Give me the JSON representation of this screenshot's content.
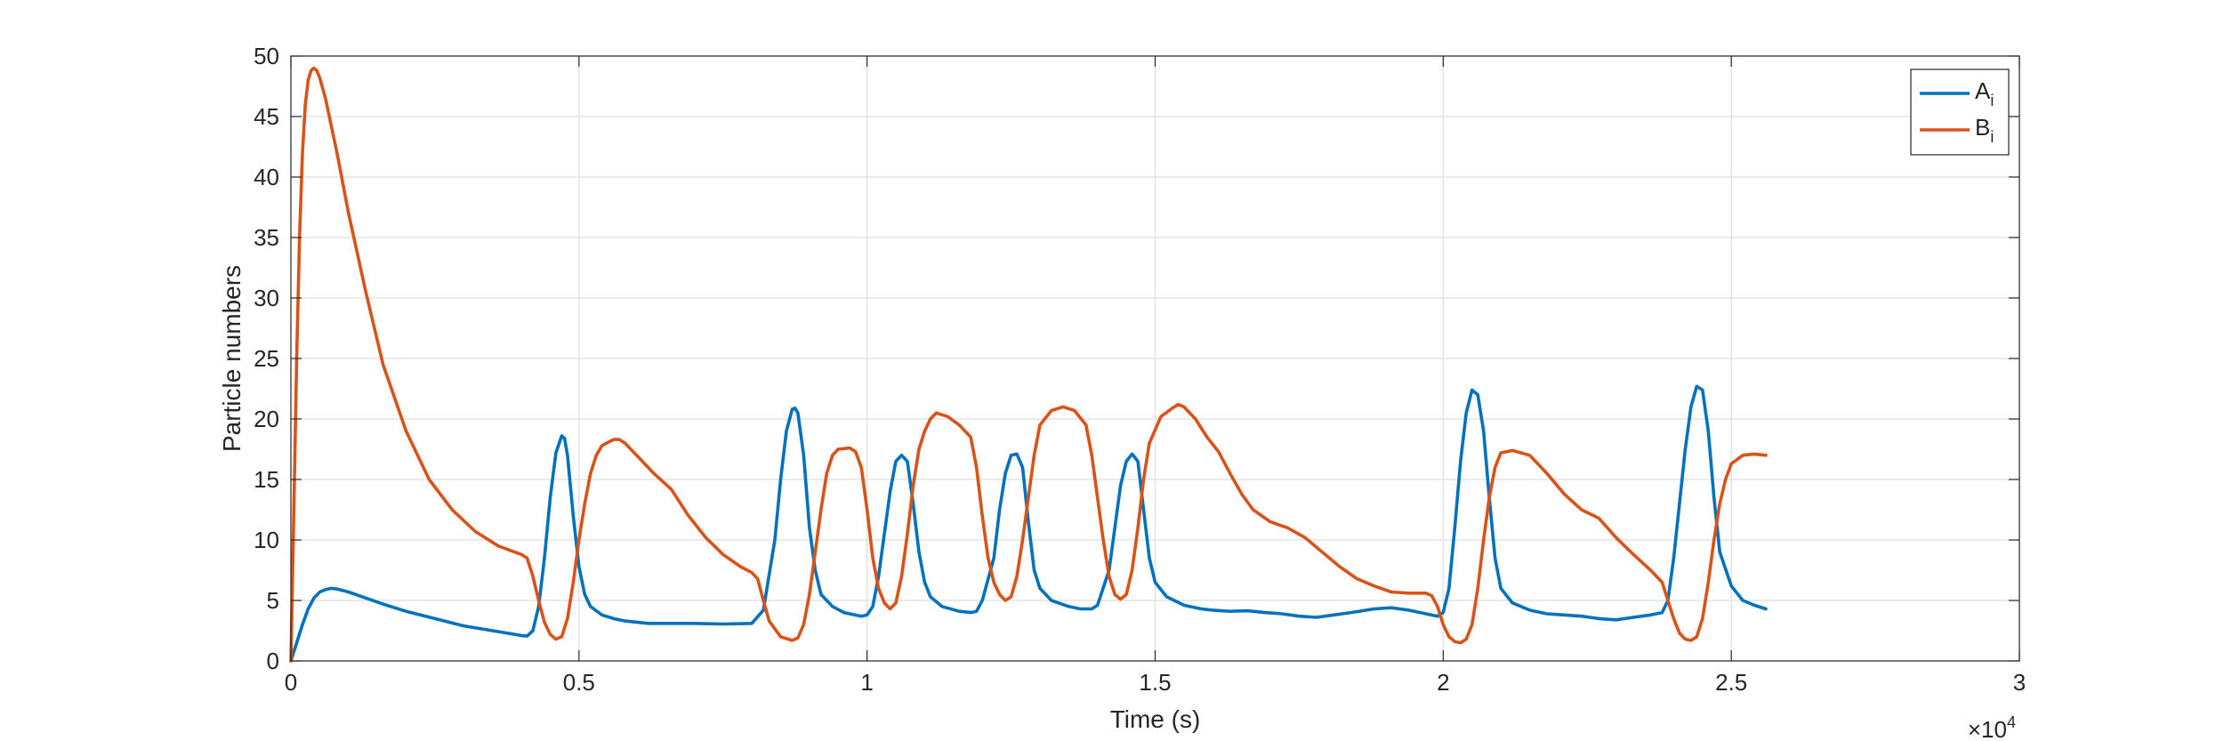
{
  "chart_data": {
    "type": "line",
    "xlabel": "Time (s)",
    "ylabel": "Particle numbers",
    "xlim": [
      0,
      30000
    ],
    "ylim": [
      0,
      50
    ],
    "x_ticks": [
      0,
      5000,
      10000,
      15000,
      20000,
      25000,
      30000
    ],
    "x_tick_labels": [
      "0",
      "0.5",
      "1",
      "1.5",
      "2",
      "2.5",
      "3"
    ],
    "x_multiplier": {
      "base": "×10",
      "exponent": "4"
    },
    "y_ticks": [
      0,
      5,
      10,
      15,
      20,
      25,
      30,
      35,
      40,
      45,
      50
    ],
    "y_tick_labels": [
      "0",
      "5",
      "10",
      "15",
      "20",
      "25",
      "30",
      "35",
      "40",
      "45",
      "50"
    ],
    "grid": true,
    "legend_position": "top-right",
    "series": [
      {
        "name": "A",
        "subscript": "i",
        "color": "#0072BD",
        "points": [
          [
            0,
            0
          ],
          [
            100,
            1.5
          ],
          [
            200,
            3
          ],
          [
            300,
            4.3
          ],
          [
            400,
            5.2
          ],
          [
            500,
            5.7
          ],
          [
            600,
            5.9
          ],
          [
            700,
            6
          ],
          [
            800,
            5.95
          ],
          [
            1000,
            5.7
          ],
          [
            1300,
            5.2
          ],
          [
            1600,
            4.7
          ],
          [
            2000,
            4.1
          ],
          [
            2500,
            3.5
          ],
          [
            3000,
            2.9
          ],
          [
            3500,
            2.5
          ],
          [
            4000,
            2.1
          ],
          [
            4100,
            2.05
          ],
          [
            4200,
            2.5
          ],
          [
            4300,
            4.5
          ],
          [
            4400,
            8.5
          ],
          [
            4500,
            13.5
          ],
          [
            4600,
            17.2
          ],
          [
            4700,
            18.6
          ],
          [
            4750,
            18.4
          ],
          [
            4800,
            17
          ],
          [
            4900,
            12
          ],
          [
            5000,
            7.8
          ],
          [
            5100,
            5.5
          ],
          [
            5200,
            4.5
          ],
          [
            5400,
            3.8
          ],
          [
            5600,
            3.5
          ],
          [
            5800,
            3.3
          ],
          [
            6200,
            3.1
          ],
          [
            6600,
            3.1
          ],
          [
            7000,
            3.1
          ],
          [
            7500,
            3.05
          ],
          [
            8000,
            3.1
          ],
          [
            8200,
            4.2
          ],
          [
            8400,
            10
          ],
          [
            8500,
            15
          ],
          [
            8600,
            19
          ],
          [
            8700,
            20.8
          ],
          [
            8750,
            20.9
          ],
          [
            8800,
            20.5
          ],
          [
            8900,
            17
          ],
          [
            9000,
            11
          ],
          [
            9100,
            7.5
          ],
          [
            9200,
            5.5
          ],
          [
            9400,
            4.5
          ],
          [
            9600,
            4
          ],
          [
            9900,
            3.7
          ],
          [
            10000,
            3.8
          ],
          [
            10100,
            4.5
          ],
          [
            10200,
            7
          ],
          [
            10300,
            10.5
          ],
          [
            10400,
            14
          ],
          [
            10500,
            16.5
          ],
          [
            10600,
            17
          ],
          [
            10700,
            16.5
          ],
          [
            10800,
            13
          ],
          [
            10900,
            9
          ],
          [
            11000,
            6.5
          ],
          [
            11100,
            5.3
          ],
          [
            11300,
            4.5
          ],
          [
            11600,
            4.1
          ],
          [
            11800,
            4
          ],
          [
            11900,
            4.1
          ],
          [
            12000,
            5
          ],
          [
            12200,
            8.5
          ],
          [
            12300,
            12.5
          ],
          [
            12400,
            15.5
          ],
          [
            12500,
            17
          ],
          [
            12600,
            17.1
          ],
          [
            12700,
            16
          ],
          [
            12800,
            11.5
          ],
          [
            12900,
            7.5
          ],
          [
            13000,
            6
          ],
          [
            13200,
            5
          ],
          [
            13500,
            4.5
          ],
          [
            13700,
            4.3
          ],
          [
            13900,
            4.3
          ],
          [
            14000,
            4.6
          ],
          [
            14200,
            7.5
          ],
          [
            14300,
            11
          ],
          [
            14400,
            14.5
          ],
          [
            14500,
            16.5
          ],
          [
            14600,
            17.1
          ],
          [
            14700,
            16.5
          ],
          [
            14800,
            12.5
          ],
          [
            14900,
            8.5
          ],
          [
            15000,
            6.5
          ],
          [
            15200,
            5.3
          ],
          [
            15500,
            4.6
          ],
          [
            15800,
            4.3
          ],
          [
            16000,
            4.2
          ],
          [
            16300,
            4.1
          ],
          [
            16600,
            4.15
          ],
          [
            16900,
            4
          ],
          [
            17200,
            3.9
          ],
          [
            17500,
            3.7
          ],
          [
            17800,
            3.6
          ],
          [
            18100,
            3.8
          ],
          [
            18400,
            4
          ],
          [
            18800,
            4.3
          ],
          [
            19100,
            4.4
          ],
          [
            19400,
            4.2
          ],
          [
            19700,
            3.9
          ],
          [
            19900,
            3.7
          ],
          [
            20000,
            4
          ],
          [
            20100,
            6
          ],
          [
            20200,
            11
          ],
          [
            20300,
            16.5
          ],
          [
            20400,
            20.5
          ],
          [
            20500,
            22.4
          ],
          [
            20600,
            22
          ],
          [
            20700,
            19
          ],
          [
            20800,
            13.5
          ],
          [
            20900,
            8.5
          ],
          [
            21000,
            6
          ],
          [
            21200,
            4.8
          ],
          [
            21500,
            4.2
          ],
          [
            21800,
            3.9
          ],
          [
            22100,
            3.8
          ],
          [
            22400,
            3.7
          ],
          [
            22700,
            3.5
          ],
          [
            23000,
            3.4
          ],
          [
            23300,
            3.6
          ],
          [
            23600,
            3.8
          ],
          [
            23800,
            4
          ],
          [
            23900,
            5
          ],
          [
            24000,
            8.5
          ],
          [
            24100,
            13
          ],
          [
            24200,
            17.5
          ],
          [
            24300,
            21
          ],
          [
            24400,
            22.7
          ],
          [
            24500,
            22.4
          ],
          [
            24600,
            19
          ],
          [
            24700,
            13.5
          ],
          [
            24800,
            9
          ],
          [
            25000,
            6.2
          ],
          [
            25200,
            5
          ],
          [
            25400,
            4.6
          ],
          [
            25600,
            4.3
          ]
        ]
      },
      {
        "name": "B",
        "subscript": "i",
        "color": "#D95319",
        "points": [
          [
            0,
            0
          ],
          [
            50,
            12
          ],
          [
            100,
            25
          ],
          [
            150,
            35
          ],
          [
            200,
            42
          ],
          [
            250,
            46
          ],
          [
            300,
            48
          ],
          [
            350,
            48.8
          ],
          [
            400,
            49
          ],
          [
            450,
            48.8
          ],
          [
            500,
            48.2
          ],
          [
            600,
            46.5
          ],
          [
            800,
            42
          ],
          [
            1000,
            37
          ],
          [
            1300,
            30.5
          ],
          [
            1600,
            24.5
          ],
          [
            2000,
            19
          ],
          [
            2400,
            15
          ],
          [
            2800,
            12.5
          ],
          [
            3200,
            10.7
          ],
          [
            3600,
            9.5
          ],
          [
            4000,
            8.8
          ],
          [
            4100,
            8.5
          ],
          [
            4200,
            7
          ],
          [
            4300,
            5
          ],
          [
            4400,
            3.2
          ],
          [
            4500,
            2.2
          ],
          [
            4600,
            1.8
          ],
          [
            4700,
            2
          ],
          [
            4800,
            3.5
          ],
          [
            4900,
            6.5
          ],
          [
            5000,
            10
          ],
          [
            5100,
            13
          ],
          [
            5200,
            15.5
          ],
          [
            5300,
            17
          ],
          [
            5400,
            17.8
          ],
          [
            5600,
            18.3
          ],
          [
            5700,
            18.3
          ],
          [
            5800,
            18
          ],
          [
            6000,
            17
          ],
          [
            6300,
            15.5
          ],
          [
            6600,
            14.2
          ],
          [
            6900,
            12
          ],
          [
            7200,
            10.2
          ],
          [
            7500,
            8.8
          ],
          [
            7800,
            7.8
          ],
          [
            8000,
            7.3
          ],
          [
            8100,
            6.8
          ],
          [
            8200,
            5
          ],
          [
            8300,
            3.3
          ],
          [
            8500,
            2
          ],
          [
            8700,
            1.7
          ],
          [
            8800,
            1.9
          ],
          [
            8900,
            3
          ],
          [
            9000,
            5.5
          ],
          [
            9100,
            9
          ],
          [
            9200,
            12.5
          ],
          [
            9300,
            15.5
          ],
          [
            9400,
            17
          ],
          [
            9500,
            17.5
          ],
          [
            9700,
            17.6
          ],
          [
            9800,
            17.3
          ],
          [
            9900,
            16
          ],
          [
            10000,
            12.5
          ],
          [
            10100,
            8.5
          ],
          [
            10200,
            6
          ],
          [
            10300,
            4.8
          ],
          [
            10400,
            4.3
          ],
          [
            10500,
            4.8
          ],
          [
            10600,
            7
          ],
          [
            10700,
            10.5
          ],
          [
            10800,
            14.5
          ],
          [
            10900,
            17.5
          ],
          [
            11000,
            19
          ],
          [
            11100,
            20
          ],
          [
            11200,
            20.5
          ],
          [
            11400,
            20.2
          ],
          [
            11600,
            19.5
          ],
          [
            11800,
            18.5
          ],
          [
            11900,
            16
          ],
          [
            12000,
            12
          ],
          [
            12100,
            8.5
          ],
          [
            12200,
            6.5
          ],
          [
            12300,
            5.5
          ],
          [
            12400,
            5
          ],
          [
            12500,
            5.3
          ],
          [
            12600,
            7
          ],
          [
            12700,
            10
          ],
          [
            12800,
            13.5
          ],
          [
            12900,
            17
          ],
          [
            13000,
            19.5
          ],
          [
            13200,
            20.7
          ],
          [
            13400,
            21
          ],
          [
            13600,
            20.7
          ],
          [
            13800,
            19.5
          ],
          [
            13900,
            17
          ],
          [
            14000,
            13.5
          ],
          [
            14100,
            10
          ],
          [
            14200,
            7
          ],
          [
            14300,
            5.5
          ],
          [
            14400,
            5.1
          ],
          [
            14500,
            5.5
          ],
          [
            14600,
            7.5
          ],
          [
            14700,
            11
          ],
          [
            14800,
            15
          ],
          [
            14900,
            18
          ],
          [
            15100,
            20.2
          ],
          [
            15300,
            20.9
          ],
          [
            15400,
            21.2
          ],
          [
            15500,
            21
          ],
          [
            15700,
            20
          ],
          [
            15900,
            18.5
          ],
          [
            16100,
            17.3
          ],
          [
            16300,
            15.5
          ],
          [
            16500,
            13.8
          ],
          [
            16700,
            12.5
          ],
          [
            17000,
            11.5
          ],
          [
            17300,
            11
          ],
          [
            17600,
            10.2
          ],
          [
            17900,
            9
          ],
          [
            18200,
            7.8
          ],
          [
            18500,
            6.8
          ],
          [
            18800,
            6.2
          ],
          [
            19100,
            5.7
          ],
          [
            19400,
            5.6
          ],
          [
            19700,
            5.6
          ],
          [
            19800,
            5.4
          ],
          [
            19900,
            4.5
          ],
          [
            20000,
            3
          ],
          [
            20100,
            2
          ],
          [
            20200,
            1.6
          ],
          [
            20300,
            1.5
          ],
          [
            20400,
            1.8
          ],
          [
            20500,
            3
          ],
          [
            20600,
            6
          ],
          [
            20700,
            10
          ],
          [
            20800,
            13.5
          ],
          [
            20900,
            16
          ],
          [
            21000,
            17.2
          ],
          [
            21200,
            17.4
          ],
          [
            21500,
            17
          ],
          [
            21800,
            15.5
          ],
          [
            22100,
            13.8
          ],
          [
            22400,
            12.5
          ],
          [
            22700,
            11.8
          ],
          [
            23000,
            10.2
          ],
          [
            23300,
            8.8
          ],
          [
            23600,
            7.5
          ],
          [
            23800,
            6.5
          ],
          [
            23900,
            5
          ],
          [
            24000,
            3.5
          ],
          [
            24100,
            2.3
          ],
          [
            24200,
            1.8
          ],
          [
            24300,
            1.7
          ],
          [
            24400,
            2
          ],
          [
            24500,
            3.5
          ],
          [
            24600,
            6.5
          ],
          [
            24700,
            10
          ],
          [
            24800,
            13
          ],
          [
            24900,
            15
          ],
          [
            25000,
            16.3
          ],
          [
            25200,
            17
          ],
          [
            25400,
            17.1
          ],
          [
            25600,
            17
          ]
        ]
      }
    ]
  }
}
